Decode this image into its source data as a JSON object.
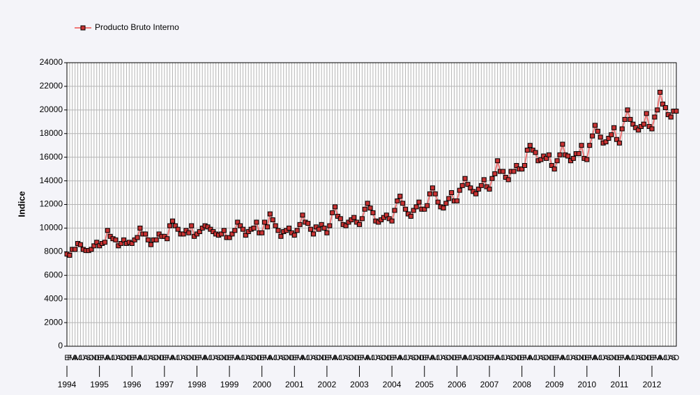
{
  "chart_data": {
    "type": "line",
    "y_label": "Indice",
    "categories": [
      "E",
      "F",
      "M",
      "A",
      "M",
      "J",
      "J",
      "A",
      "S",
      "O",
      "N",
      "D",
      "E",
      "F",
      "M",
      "A",
      "M",
      "J",
      "J",
      "A",
      "S",
      "O",
      "N",
      "D",
      "E",
      "F",
      "M",
      "A",
      "M",
      "J",
      "J",
      "A",
      "S",
      "O",
      "N",
      "D",
      "E",
      "F",
      "M",
      "A",
      "M",
      "J",
      "J",
      "A",
      "S",
      "O",
      "N",
      "D",
      "E",
      "F",
      "M",
      "A",
      "M",
      "J",
      "J",
      "A",
      "S",
      "O",
      "N",
      "D",
      "E",
      "F",
      "M",
      "A",
      "M",
      "J",
      "J",
      "A",
      "S",
      "O",
      "N",
      "D",
      "E",
      "F",
      "M",
      "A",
      "M",
      "J",
      "J",
      "A",
      "S",
      "O",
      "N",
      "D",
      "E",
      "F",
      "M",
      "A",
      "M",
      "J",
      "J",
      "A",
      "S",
      "O",
      "N",
      "D",
      "E",
      "F",
      "M",
      "A",
      "M",
      "J",
      "J",
      "A",
      "S",
      "O",
      "N",
      "D",
      "E",
      "F",
      "M",
      "A",
      "M",
      "J",
      "J",
      "A",
      "S",
      "O",
      "N",
      "D",
      "E",
      "F",
      "M",
      "A",
      "M",
      "J",
      "J",
      "A",
      "S",
      "O",
      "N",
      "D",
      "E",
      "F",
      "M",
      "A",
      "M",
      "J",
      "J",
      "A",
      "S",
      "O",
      "N",
      "D",
      "E",
      "F",
      "M",
      "A",
      "M",
      "J",
      "J",
      "A",
      "S",
      "O",
      "N",
      "D",
      "E",
      "F",
      "M",
      "A",
      "M",
      "J",
      "J",
      "A",
      "S",
      "O",
      "N",
      "D",
      "E",
      "F",
      "M",
      "A",
      "M",
      "J",
      "J",
      "A",
      "S",
      "O",
      "N",
      "D",
      "E",
      "F",
      "M",
      "A",
      "M",
      "J",
      "J",
      "A",
      "S",
      "O",
      "N",
      "D",
      "E",
      "F",
      "M",
      "A",
      "M",
      "J",
      "J",
      "A",
      "S",
      "O",
      "N",
      "D",
      "E",
      "F",
      "M",
      "A",
      "M",
      "J",
      "J",
      "A",
      "S",
      "O",
      "N",
      "D",
      "E",
      "F",
      "M",
      "A",
      "M",
      "J",
      "J",
      "A",
      "S",
      "O"
    ],
    "years": [
      "1994",
      "1995",
      "1996",
      "1997",
      "1998",
      "1999",
      "2000",
      "2001",
      "2002",
      "2003",
      "2004",
      "2005",
      "2006",
      "2007",
      "2008",
      "2009",
      "2010",
      "2011",
      "2012"
    ],
    "series": [
      {
        "name": "Producto Bruto Interno",
        "color": "#f07878",
        "marker_color": "#c83232",
        "values": [
          7800,
          7700,
          8200,
          8200,
          8700,
          8600,
          8200,
          8100,
          8100,
          8200,
          8500,
          8800,
          8500,
          8700,
          8800,
          9800,
          9300,
          9100,
          9000,
          8500,
          8700,
          9000,
          8700,
          8800,
          8700,
          9000,
          9200,
          10000,
          9500,
          9500,
          9000,
          8600,
          9000,
          9000,
          9500,
          9300,
          9300,
          9100,
          10200,
          10600,
          10200,
          9900,
          9500,
          9500,
          9800,
          9600,
          10200,
          9300,
          9500,
          9700,
          10000,
          10200,
          10100,
          9900,
          9700,
          9500,
          9400,
          9500,
          9800,
          9200,
          9200,
          9500,
          9800,
          10500,
          10200,
          9900,
          9400,
          9700,
          9900,
          10000,
          10500,
          9600,
          9600,
          10500,
          10100,
          11200,
          10700,
          10200,
          9800,
          9300,
          9700,
          9800,
          10000,
          9600,
          9400,
          9800,
          10300,
          11100,
          10500,
          10400,
          9900,
          9500,
          10100,
          9900,
          10300,
          10000,
          9600,
          10200,
          11300,
          11800,
          11000,
          10800,
          10300,
          10200,
          10500,
          10700,
          10900,
          10500,
          10300,
          10800,
          11600,
          12100,
          11700,
          11300,
          10600,
          10500,
          10700,
          10900,
          11100,
          10800,
          10600,
          11500,
          12300,
          12700,
          12100,
          11600,
          11200,
          11000,
          11500,
          11800,
          12200,
          11600,
          11600,
          11900,
          12900,
          13400,
          12900,
          12200,
          11800,
          11700,
          12100,
          12500,
          13000,
          12300,
          12300,
          13200,
          13600,
          14200,
          13700,
          13400,
          13100,
          12900,
          13300,
          13600,
          14100,
          13500,
          13300,
          14200,
          14600,
          15700,
          14800,
          14800,
          14300,
          14100,
          14800,
          14800,
          15300,
          15000,
          15000,
          15300,
          16600,
          17000,
          16600,
          16400,
          15700,
          15800,
          16100,
          15900,
          16200,
          15300,
          15000,
          15700,
          16200,
          17100,
          16200,
          16100,
          15700,
          15900,
          16300,
          16300,
          17000,
          15900,
          15800,
          17000,
          17800,
          18700,
          18200,
          17700,
          17200,
          17300,
          17600,
          17900,
          18500,
          17500,
          17200,
          18400,
          19200,
          20000,
          19200,
          18800,
          18500,
          18300,
          18600,
          18800,
          19700,
          18600,
          18400,
          19400,
          20000,
          21500,
          20500,
          20200,
          19600,
          19400,
          19900,
          19900
        ]
      }
    ],
    "ylim": [
      0,
      24000
    ],
    "yticks": [
      0,
      2000,
      4000,
      6000,
      8000,
      10000,
      12000,
      14000,
      16000,
      18000,
      20000,
      22000,
      24000
    ],
    "grid": true,
    "legend": "top-left"
  }
}
